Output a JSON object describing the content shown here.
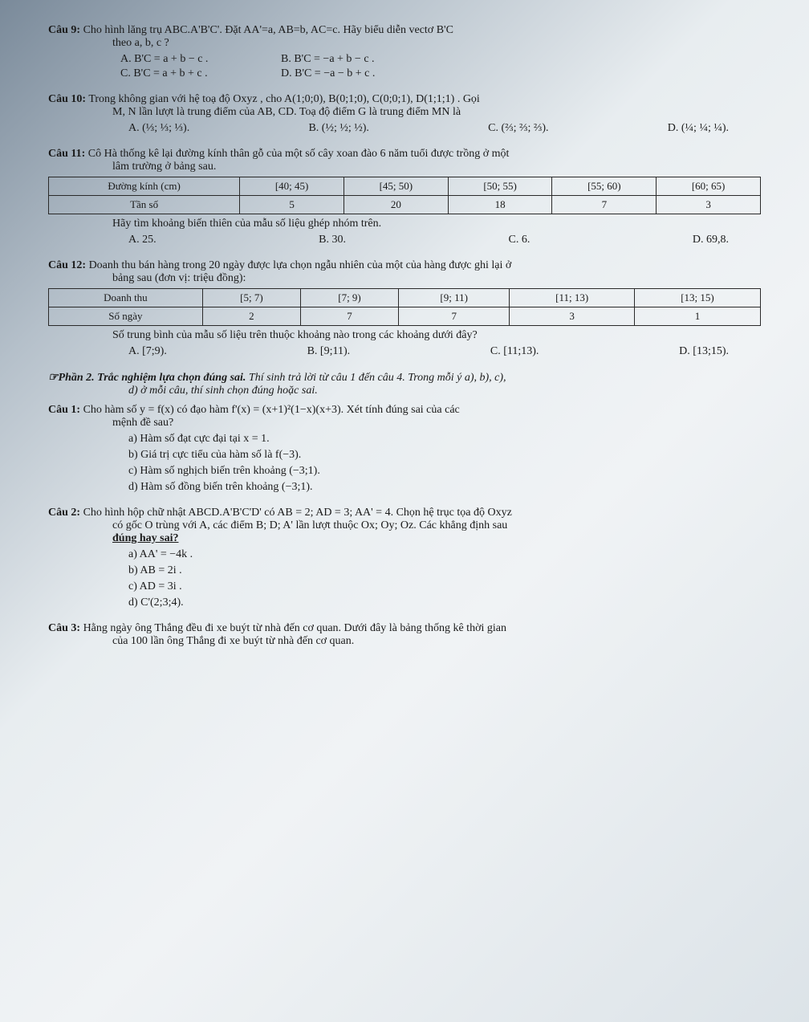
{
  "q9": {
    "label": "Câu 9:",
    "text": "Cho hình lăng trụ ABC.A'B'C'. Đặt AA'=a, AB=b, AC=c. Hãy biểu diễn vectơ B'C",
    "line2": "theo a, b, c ?",
    "optA": "A. B'C = a + b − c .",
    "optB": "B. B'C = −a + b − c .",
    "optC": "C. B'C = a + b + c .",
    "optD": "D. B'C = −a − b + c ."
  },
  "q10": {
    "label": "Câu 10:",
    "text": "Trong không gian với hệ toạ độ Oxyz , cho A(1;0;0), B(0;1;0), C(0;0;1), D(1;1;1) . Gọi",
    "line2": "M, N lần lượt là trung điểm của AB, CD. Toạ độ điểm G là trung điểm MN là",
    "optA": "A. (⅓; ⅓; ⅓).",
    "optB": "B. (½; ½; ½).",
    "optC": "C. (⅔; ⅔; ⅔).",
    "optD": "D. (¼; ¼; ¼)."
  },
  "q11": {
    "label": "Câu 11:",
    "text": "Cô Hà thống kê lại đường kính thân gỗ của một số cây xoan đào 6 năm tuổi được trồng ở một",
    "line2": "lâm trường ở bảng sau.",
    "table": {
      "headers": [
        "Đường kính (cm)",
        "[40; 45)",
        "[45; 50)",
        "[50; 55)",
        "[55; 60)",
        "[60; 65)"
      ],
      "row2": [
        "Tần số",
        "5",
        "20",
        "18",
        "7",
        "3"
      ]
    },
    "after": "Hãy tìm khoảng biến thiên của mẫu số liệu ghép nhóm trên.",
    "optA": "A. 25.",
    "optB": "B. 30.",
    "optC": "C. 6.",
    "optD": "D. 69,8."
  },
  "q12": {
    "label": "Câu 12:",
    "text": "Doanh thu bán hàng trong 20 ngày được lựa chọn ngẫu nhiên của một của hàng được ghi lại ở",
    "line2": "bảng sau (đơn vị: triệu đồng):",
    "table": {
      "headers": [
        "Doanh thu",
        "[5; 7)",
        "[7; 9)",
        "[9; 11)",
        "[11; 13)",
        "[13; 15)"
      ],
      "row2": [
        "Số ngày",
        "2",
        "7",
        "7",
        "3",
        "1"
      ]
    },
    "after": "Số trung bình của mẫu số liệu trên thuộc khoảng nào trong các khoảng dưới đây?",
    "optA": "A. [7;9).",
    "optB": "B. [9;11).",
    "optC": "C. [11;13).",
    "optD": "D. [13;15)."
  },
  "part2": {
    "label": "☞Phần 2. Trắc nghiệm lựa chọn đúng sai.",
    "text": "Thí sinh trả lời từ câu 1 đến câu 4. Trong mỗi ý a), b), c),",
    "line2": "d) ở mỗi câu, thí sinh chọn đúng hoặc sai."
  },
  "p2q1": {
    "label": "Câu 1:",
    "text": "Cho hàm số y = f(x) có đạo hàm f'(x) = (x+1)²(1−x)(x+3). Xét tính đúng sai của các",
    "line2": "mệnh đề sau?",
    "a": "a) Hàm số đạt cực đại tại x = 1.",
    "b": "b) Giá trị cực tiểu của hàm số là f(−3).",
    "c": "c) Hàm số nghịch biến trên khoảng (−3;1).",
    "d": "d) Hàm số đồng biến trên khoảng (−3;1)."
  },
  "p2q2": {
    "label": "Câu 2:",
    "text": "Cho hình hộp chữ nhật ABCD.A'B'C'D' có AB = 2; AD = 3; AA' = 4. Chọn hệ trục tọa độ Oxyz",
    "line2": "có gốc O trùng với A, các điểm B; D; A' lần lượt thuộc Ox; Oy; Oz. Các khẳng định sau",
    "line3": "đúng hay sai?",
    "a": "a) AA' = −4k .",
    "b": "b) AB = 2i .",
    "c": "c) AD = 3i .",
    "d": "d) C'(2;3;4)."
  },
  "p2q3": {
    "label": "Câu 3:",
    "text": "Hằng ngày ông Thắng đều đi xe buýt từ nhà đến cơ quan. Dưới đây là bảng thống kê thời gian",
    "line2": "của 100 lần ông Thắng đi xe buýt từ nhà đến cơ quan."
  }
}
